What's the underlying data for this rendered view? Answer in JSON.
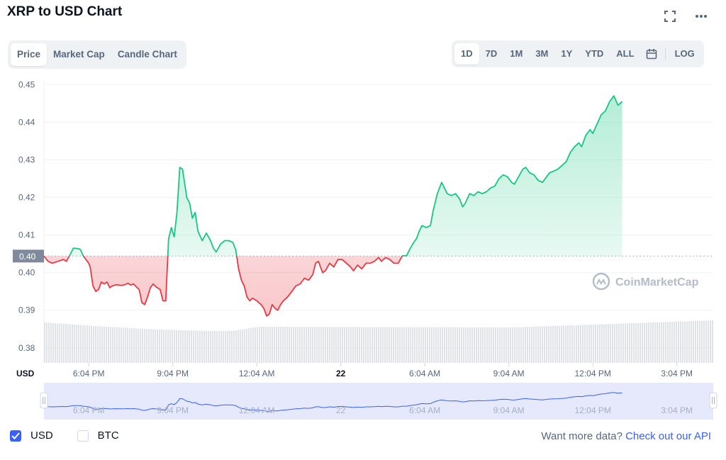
{
  "header": {
    "title": "XRP to USD Chart"
  },
  "view_tabs": [
    {
      "label": "Price",
      "active": true
    },
    {
      "label": "Market Cap",
      "active": false
    },
    {
      "label": "Candle Chart",
      "active": false
    }
  ],
  "range_tabs": [
    {
      "label": "1D",
      "active": true
    },
    {
      "label": "7D",
      "active": false
    },
    {
      "label": "1M",
      "active": false
    },
    {
      "label": "3M",
      "active": false
    },
    {
      "label": "1Y",
      "active": false
    },
    {
      "label": "YTD",
      "active": false
    },
    {
      "label": "ALL",
      "active": false
    }
  ],
  "log_label": "LOG",
  "icons": [
    "fullscreen-icon",
    "more-icon",
    "calendar-icon",
    "checkmark-icon",
    "coinmarketcap-logo-icon"
  ],
  "colors": {
    "up": "#16c784",
    "down": "#ea3943",
    "accent": "#3861fb",
    "volume": "#dfe2e6",
    "navigator": "#e6e8fb"
  },
  "watermark": "CoinMarketCap",
  "chart_data": {
    "type": "area",
    "currency_label": "USD",
    "reference_value": 0.4044,
    "reference_label": "0.40",
    "ylim": [
      0.376,
      0.451
    ],
    "yticks": [
      "0.45",
      "0.44",
      "0.43",
      "0.42",
      "0.41",
      "0.40",
      "0.39",
      "0.38"
    ],
    "ytick_values": [
      0.45,
      0.44,
      0.43,
      0.42,
      0.41,
      0.4,
      0.39,
      0.38
    ],
    "xlim_hours": [
      0,
      23.9
    ],
    "xticks": [
      {
        "label": "6:04 PM",
        "h": 1.6,
        "bold": false
      },
      {
        "label": "9:04 PM",
        "h": 4.6,
        "bold": false
      },
      {
        "label": "12:04 AM",
        "h": 7.6,
        "bold": false
      },
      {
        "label": "22",
        "h": 10.6,
        "bold": true
      },
      {
        "label": "6:04 AM",
        "h": 13.6,
        "bold": false
      },
      {
        "label": "9:04 AM",
        "h": 16.6,
        "bold": false
      },
      {
        "label": "12:04 PM",
        "h": 19.6,
        "bold": false
      },
      {
        "label": "3:04 PM",
        "h": 22.6,
        "bold": false
      }
    ],
    "series": [
      {
        "points": [
          [
            0.0,
            0.4044
          ],
          [
            0.15,
            0.403
          ],
          [
            0.3,
            0.4025
          ],
          [
            0.5,
            0.403
          ],
          [
            0.7,
            0.4035
          ],
          [
            0.8,
            0.403
          ],
          [
            0.95,
            0.405
          ],
          [
            1.05,
            0.4065
          ],
          [
            1.2,
            0.4064
          ],
          [
            1.3,
            0.4062
          ],
          [
            1.4,
            0.4045
          ],
          [
            1.5,
            0.4035
          ],
          [
            1.6,
            0.4025
          ],
          [
            1.65,
            0.4015
          ],
          [
            1.75,
            0.3965
          ],
          [
            1.85,
            0.395
          ],
          [
            1.95,
            0.3955
          ],
          [
            2.05,
            0.3975
          ],
          [
            2.15,
            0.397
          ],
          [
            2.25,
            0.3975
          ],
          [
            2.35,
            0.396
          ],
          [
            2.45,
            0.3965
          ],
          [
            2.6,
            0.3968
          ],
          [
            2.75,
            0.3966
          ],
          [
            2.9,
            0.3968
          ],
          [
            3.0,
            0.3972
          ],
          [
            3.1,
            0.3967
          ],
          [
            3.2,
            0.397
          ],
          [
            3.3,
            0.3962
          ],
          [
            3.4,
            0.3955
          ],
          [
            3.5,
            0.392
          ],
          [
            3.6,
            0.3915
          ],
          [
            3.7,
            0.3935
          ],
          [
            3.8,
            0.396
          ],
          [
            3.9,
            0.397
          ],
          [
            4.0,
            0.3962
          ],
          [
            4.15,
            0.3955
          ],
          [
            4.25,
            0.3925
          ],
          [
            4.35,
            0.3925
          ],
          [
            4.45,
            0.409
          ],
          [
            4.55,
            0.412
          ],
          [
            4.65,
            0.4095
          ],
          [
            4.75,
            0.416
          ],
          [
            4.85,
            0.428
          ],
          [
            4.95,
            0.4275
          ],
          [
            5.1,
            0.42
          ],
          [
            5.2,
            0.4185
          ],
          [
            5.3,
            0.4145
          ],
          [
            5.4,
            0.416
          ],
          [
            5.5,
            0.411
          ],
          [
            5.65,
            0.4085
          ],
          [
            5.8,
            0.4105
          ],
          [
            5.95,
            0.4085
          ],
          [
            6.05,
            0.4065
          ],
          [
            6.15,
            0.4055
          ],
          [
            6.3,
            0.4075
          ],
          [
            6.45,
            0.4085
          ],
          [
            6.6,
            0.4085
          ],
          [
            6.75,
            0.408
          ],
          [
            6.85,
            0.406
          ],
          [
            6.95,
            0.401
          ],
          [
            7.05,
            0.398
          ],
          [
            7.15,
            0.3965
          ],
          [
            7.25,
            0.3935
          ],
          [
            7.35,
            0.3925
          ],
          [
            7.45,
            0.3932
          ],
          [
            7.6,
            0.3925
          ],
          [
            7.75,
            0.3915
          ],
          [
            7.85,
            0.3905
          ],
          [
            7.95,
            0.3885
          ],
          [
            8.05,
            0.389
          ],
          [
            8.15,
            0.3915
          ],
          [
            8.25,
            0.3905
          ],
          [
            8.35,
            0.39
          ],
          [
            8.45,
            0.3915
          ],
          [
            8.55,
            0.3925
          ],
          [
            8.7,
            0.3935
          ],
          [
            8.85,
            0.395
          ],
          [
            9.0,
            0.3965
          ],
          [
            9.15,
            0.397
          ],
          [
            9.3,
            0.3985
          ],
          [
            9.45,
            0.398
          ],
          [
            9.6,
            0.3995
          ],
          [
            9.7,
            0.4025
          ],
          [
            9.8,
            0.403
          ],
          [
            9.95,
            0.4
          ],
          [
            10.05,
            0.4005
          ],
          [
            10.2,
            0.4025
          ],
          [
            10.35,
            0.4015
          ],
          [
            10.5,
            0.4035
          ],
          [
            10.65,
            0.4035
          ],
          [
            10.8,
            0.4025
          ],
          [
            10.95,
            0.4015
          ],
          [
            11.05,
            0.4005
          ],
          [
            11.2,
            0.402
          ],
          [
            11.35,
            0.401
          ],
          [
            11.5,
            0.4025
          ],
          [
            11.65,
            0.4025
          ],
          [
            11.8,
            0.403
          ],
          [
            11.95,
            0.404
          ],
          [
            12.05,
            0.403
          ],
          [
            12.2,
            0.404
          ],
          [
            12.35,
            0.4035
          ],
          [
            12.5,
            0.4025
          ],
          [
            12.65,
            0.4025
          ],
          [
            12.8,
            0.4045
          ],
          [
            12.95,
            0.4045
          ],
          [
            13.05,
            0.406
          ],
          [
            13.2,
            0.408
          ],
          [
            13.3,
            0.409
          ],
          [
            13.4,
            0.411
          ],
          [
            13.5,
            0.4125
          ],
          [
            13.65,
            0.412
          ],
          [
            13.8,
            0.4125
          ],
          [
            13.9,
            0.4165
          ],
          [
            14.05,
            0.421
          ],
          [
            14.2,
            0.424
          ],
          [
            14.3,
            0.4225
          ],
          [
            14.4,
            0.421
          ],
          [
            14.55,
            0.4205
          ],
          [
            14.7,
            0.421
          ],
          [
            14.85,
            0.4195
          ],
          [
            14.95,
            0.4175
          ],
          [
            15.05,
            0.4185
          ],
          [
            15.2,
            0.421
          ],
          [
            15.35,
            0.4205
          ],
          [
            15.5,
            0.4215
          ],
          [
            15.65,
            0.421
          ],
          [
            15.8,
            0.4215
          ],
          [
            15.95,
            0.4225
          ],
          [
            16.1,
            0.423
          ],
          [
            16.25,
            0.425
          ],
          [
            16.4,
            0.426
          ],
          [
            16.55,
            0.4255
          ],
          [
            16.7,
            0.424
          ],
          [
            16.8,
            0.4235
          ],
          [
            16.95,
            0.4255
          ],
          [
            17.1,
            0.4275
          ],
          [
            17.2,
            0.428
          ],
          [
            17.35,
            0.4265
          ],
          [
            17.5,
            0.426
          ],
          [
            17.65,
            0.4245
          ],
          [
            17.8,
            0.424
          ],
          [
            17.95,
            0.4255
          ],
          [
            18.05,
            0.4265
          ],
          [
            18.2,
            0.427
          ],
          [
            18.35,
            0.4275
          ],
          [
            18.5,
            0.4285
          ],
          [
            18.65,
            0.4295
          ],
          [
            18.8,
            0.432
          ],
          [
            18.95,
            0.4335
          ],
          [
            19.1,
            0.4345
          ],
          [
            19.2,
            0.4335
          ],
          [
            19.35,
            0.4365
          ],
          [
            19.5,
            0.438
          ],
          [
            19.6,
            0.437
          ],
          [
            19.75,
            0.4395
          ],
          [
            19.9,
            0.442
          ],
          [
            20.05,
            0.443
          ],
          [
            20.2,
            0.4455
          ],
          [
            20.35,
            0.447
          ],
          [
            20.5,
            0.4445
          ],
          [
            20.65,
            0.4455
          ]
        ]
      }
    ]
  },
  "navigator": {
    "label": "navigator"
  },
  "footer": {
    "usd_label": "USD",
    "btc_label": "BTC",
    "usd_checked": true,
    "btc_checked": false,
    "api_prefix": "Want more data?",
    "api_link": "Check out our API"
  }
}
